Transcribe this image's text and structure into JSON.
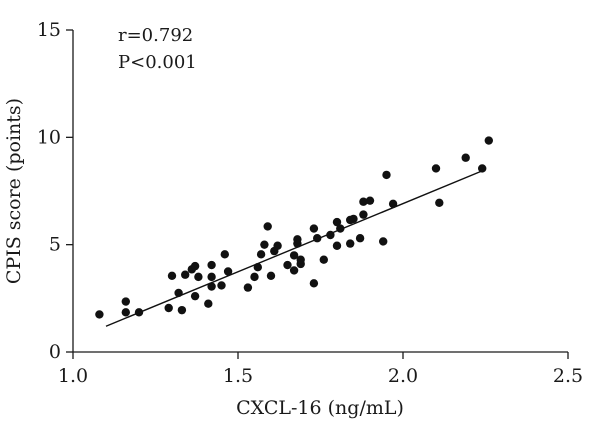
{
  "chart_data": {
    "type": "scatter",
    "title": "",
    "xlabel": "CXCL-16 (ng/mL)",
    "ylabel": "CPIS score (points)",
    "xlim": [
      1.0,
      2.5
    ],
    "ylim": [
      0,
      15
    ],
    "xticks": [
      "1.0",
      "1.5",
      "2.0",
      "2.5"
    ],
    "yticks": [
      "0",
      "5",
      "10",
      "15"
    ],
    "grid": false,
    "annotations": [
      "r=0.792",
      "P<0.001"
    ],
    "fit_line": {
      "x": [
        1.1,
        2.25
      ],
      "y": [
        1.2,
        8.5
      ]
    },
    "points": [
      {
        "x": 1.08,
        "y": 1.75
      },
      {
        "x": 1.16,
        "y": 1.85
      },
      {
        "x": 1.16,
        "y": 2.35
      },
      {
        "x": 1.2,
        "y": 1.85
      },
      {
        "x": 1.29,
        "y": 2.05
      },
      {
        "x": 1.3,
        "y": 3.55
      },
      {
        "x": 1.32,
        "y": 2.75
      },
      {
        "x": 1.33,
        "y": 1.95
      },
      {
        "x": 1.34,
        "y": 3.6
      },
      {
        "x": 1.36,
        "y": 3.85
      },
      {
        "x": 1.37,
        "y": 4.0
      },
      {
        "x": 1.37,
        "y": 2.6
      },
      {
        "x": 1.38,
        "y": 3.5
      },
      {
        "x": 1.41,
        "y": 2.25
      },
      {
        "x": 1.42,
        "y": 3.05
      },
      {
        "x": 1.42,
        "y": 3.5
      },
      {
        "x": 1.42,
        "y": 4.05
      },
      {
        "x": 1.45,
        "y": 3.1
      },
      {
        "x": 1.46,
        "y": 4.55
      },
      {
        "x": 1.47,
        "y": 3.75
      },
      {
        "x": 1.53,
        "y": 3.0
      },
      {
        "x": 1.55,
        "y": 3.5
      },
      {
        "x": 1.56,
        "y": 3.95
      },
      {
        "x": 1.57,
        "y": 4.55
      },
      {
        "x": 1.58,
        "y": 5.0
      },
      {
        "x": 1.59,
        "y": 5.85
      },
      {
        "x": 1.6,
        "y": 3.55
      },
      {
        "x": 1.61,
        "y": 4.7
      },
      {
        "x": 1.62,
        "y": 4.95
      },
      {
        "x": 1.65,
        "y": 4.05
      },
      {
        "x": 1.67,
        "y": 3.8
      },
      {
        "x": 1.67,
        "y": 4.5
      },
      {
        "x": 1.68,
        "y": 5.05
      },
      {
        "x": 1.68,
        "y": 5.25
      },
      {
        "x": 1.69,
        "y": 4.1
      },
      {
        "x": 1.69,
        "y": 4.3
      },
      {
        "x": 1.73,
        "y": 3.2
      },
      {
        "x": 1.73,
        "y": 5.75
      },
      {
        "x": 1.74,
        "y": 5.3
      },
      {
        "x": 1.76,
        "y": 4.3
      },
      {
        "x": 1.78,
        "y": 5.45
      },
      {
        "x": 1.8,
        "y": 4.95
      },
      {
        "x": 1.8,
        "y": 6.05
      },
      {
        "x": 1.81,
        "y": 5.75
      },
      {
        "x": 1.84,
        "y": 5.05
      },
      {
        "x": 1.84,
        "y": 6.15
      },
      {
        "x": 1.85,
        "y": 6.2
      },
      {
        "x": 1.87,
        "y": 5.3
      },
      {
        "x": 1.88,
        "y": 6.4
      },
      {
        "x": 1.88,
        "y": 7.0
      },
      {
        "x": 1.9,
        "y": 7.05
      },
      {
        "x": 1.94,
        "y": 5.15
      },
      {
        "x": 1.95,
        "y": 8.25
      },
      {
        "x": 1.97,
        "y": 6.9
      },
      {
        "x": 2.1,
        "y": 8.55
      },
      {
        "x": 2.11,
        "y": 6.95
      },
      {
        "x": 2.19,
        "y": 9.05
      },
      {
        "x": 2.24,
        "y": 8.55
      },
      {
        "x": 2.26,
        "y": 9.85
      }
    ]
  }
}
